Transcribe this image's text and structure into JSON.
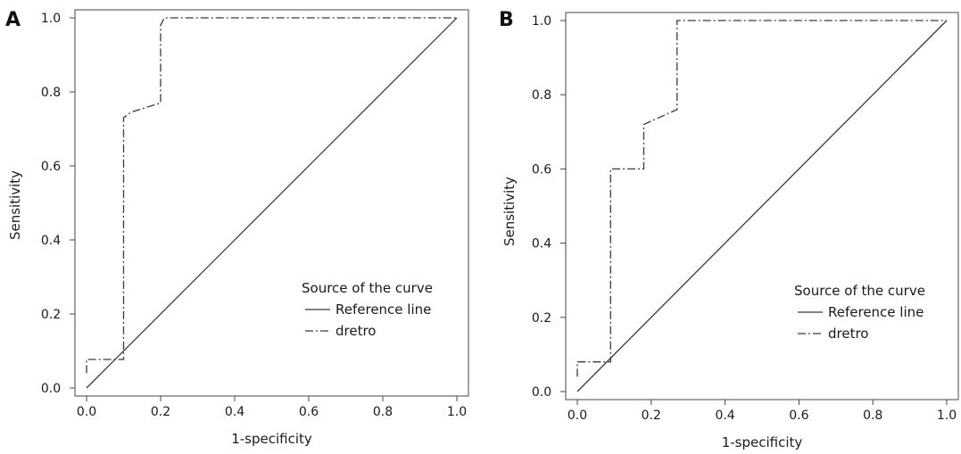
{
  "colors": {
    "line": "#3a3a3a",
    "frame": "#444444",
    "text": "#1a1a1a"
  },
  "chart_data": [
    {
      "type": "line",
      "panel": "A",
      "xlabel": "1-specificity",
      "ylabel": "Sensitivity",
      "xlim": [
        0.0,
        1.0
      ],
      "ylim": [
        0.0,
        1.0
      ],
      "x_ticks": [
        "0.0",
        "0.2",
        "0.4",
        "0.6",
        "0.8",
        "1.0"
      ],
      "y_ticks": [
        "0.0",
        "0.2",
        "0.4",
        "0.6",
        "0.8",
        "1.0"
      ],
      "grid": false,
      "legend": {
        "title": "Source of the curve",
        "position": "bottom-right",
        "entries": [
          {
            "label": "Reference line",
            "style": "solid"
          },
          {
            "label": "dretro",
            "style": "dashdot"
          }
        ]
      },
      "series": [
        {
          "name": "Reference line",
          "style": "solid",
          "points": [
            [
              0.0,
              0.0
            ],
            [
              1.0,
              1.0
            ]
          ]
        },
        {
          "name": "dretro",
          "style": "dashdot",
          "points": [
            [
              0.0,
              0.04
            ],
            [
              0.0,
              0.077
            ],
            [
              0.1,
              0.077
            ],
            [
              0.1,
              0.73
            ],
            [
              0.12,
              0.745
            ],
            [
              0.2,
              0.77
            ],
            [
              0.2,
              0.98
            ],
            [
              0.21,
              1.0
            ],
            [
              1.0,
              1.0
            ]
          ]
        }
      ]
    },
    {
      "type": "line",
      "panel": "B",
      "xlabel": "1-specificity",
      "ylabel": "Sensitivity",
      "xlim": [
        0.0,
        1.0
      ],
      "ylim": [
        0.0,
        1.0
      ],
      "x_ticks": [
        "0.0",
        "0.2",
        "0.4",
        "0.6",
        "0.8",
        "1.0"
      ],
      "y_ticks": [
        "0.0",
        "0.2",
        "0.4",
        "0.6",
        "0.8",
        "1.0"
      ],
      "grid": false,
      "legend": {
        "title": "Source of the curve",
        "position": "bottom-right",
        "entries": [
          {
            "label": "Reference line",
            "style": "solid"
          },
          {
            "label": "dretro",
            "style": "dashdot"
          }
        ]
      },
      "series": [
        {
          "name": "Reference line",
          "style": "solid",
          "points": [
            [
              0.0,
              0.0
            ],
            [
              1.0,
              1.0
            ]
          ]
        },
        {
          "name": "dretro",
          "style": "dashdot",
          "points": [
            [
              0.0,
              0.04
            ],
            [
              0.0,
              0.08
            ],
            [
              0.09,
              0.08
            ],
            [
              0.09,
              0.6
            ],
            [
              0.18,
              0.6
            ],
            [
              0.18,
              0.72
            ],
            [
              0.27,
              0.76
            ],
            [
              0.27,
              1.0
            ],
            [
              1.0,
              1.0
            ]
          ]
        }
      ]
    }
  ]
}
